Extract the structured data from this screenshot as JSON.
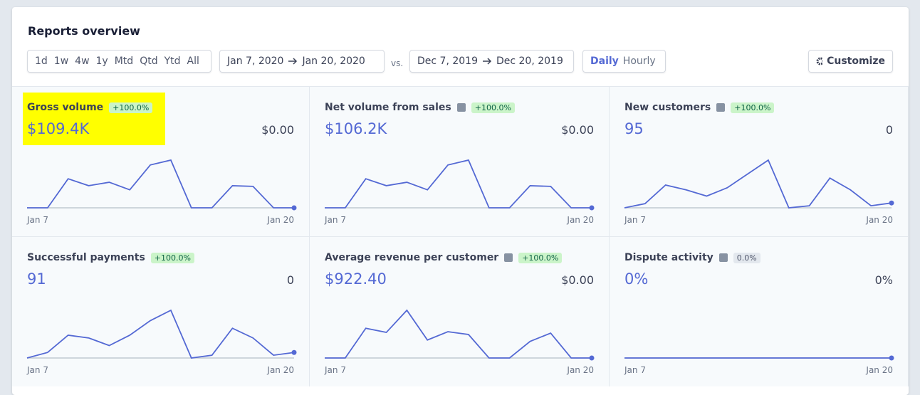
{
  "header": {
    "title": "Reports overview",
    "ranges": [
      "1d",
      "1w",
      "4w",
      "1y",
      "Mtd",
      "Qtd",
      "Ytd",
      "All"
    ],
    "period_start": "Jan 7, 2020",
    "period_end": "Jan 20, 2020",
    "vs": "vs.",
    "compare_start": "Dec 7, 2019",
    "compare_end": "Dec 20, 2019",
    "granularity": [
      "Daily",
      "Hourly"
    ],
    "customize": "Customize"
  },
  "tiles": [
    {
      "title": "Gross volume",
      "badge": "+100.0%",
      "value": "$109.4K",
      "compare": "$0.00",
      "start": "Jan 7",
      "end": "Jan 20",
      "sparkline": {
        "type": "line",
        "ylim": [
          0,
          70
        ],
        "values": [
          0,
          0,
          42,
          32,
          37,
          26,
          62,
          69,
          0,
          0,
          32,
          31,
          0,
          0
        ]
      }
    },
    {
      "title": "Net volume from sales",
      "badge": "+100.0%",
      "value": "$106.2K",
      "compare": "$0.00",
      "start": "Jan 7",
      "end": "Jan 20",
      "sparkline": {
        "type": "line",
        "ylim": [
          0,
          70
        ],
        "values": [
          0,
          0,
          42,
          32,
          37,
          26,
          62,
          69,
          0,
          0,
          32,
          31,
          0,
          0
        ]
      }
    },
    {
      "title": "New customers",
      "badge": "+100.0%",
      "value": "95",
      "compare": "0",
      "start": "Jan 7",
      "end": "Jan 20",
      "sparkline": {
        "type": "line",
        "ylim": [
          0,
          70
        ],
        "values": [
          0,
          6,
          33,
          26,
          17,
          29,
          49,
          69,
          0,
          3,
          43,
          26,
          3,
          7
        ]
      }
    },
    {
      "title": "Successful payments",
      "badge": "+100.0%",
      "value": "91",
      "compare": "0",
      "start": "Jan 7",
      "end": "Jan 20",
      "sparkline": {
        "type": "line",
        "ylim": [
          0,
          70
        ],
        "values": [
          0,
          8,
          33,
          29,
          18,
          33,
          54,
          69,
          0,
          4,
          43,
          29,
          4,
          8
        ]
      }
    },
    {
      "title": "Average revenue per customer",
      "badge": "+100.0%",
      "value": "$922.40",
      "compare": "$0.00",
      "start": "Jan 7",
      "end": "Jan 20",
      "sparkline": {
        "type": "line",
        "ylim": [
          0,
          70
        ],
        "values": [
          0,
          0,
          43,
          37,
          69,
          26,
          38,
          34,
          0,
          0,
          24,
          36,
          0,
          0
        ]
      }
    },
    {
      "title": "Dispute activity",
      "badge": "0.0%",
      "value": "0%",
      "compare": "0%",
      "start": "Jan 7",
      "end": "Jan 20",
      "sparkline": {
        "type": "line",
        "ylim": [
          0,
          70
        ],
        "values": [
          0,
          0,
          0,
          0,
          0,
          0,
          0,
          0,
          0,
          0,
          0,
          0,
          0,
          0
        ]
      }
    }
  ]
}
